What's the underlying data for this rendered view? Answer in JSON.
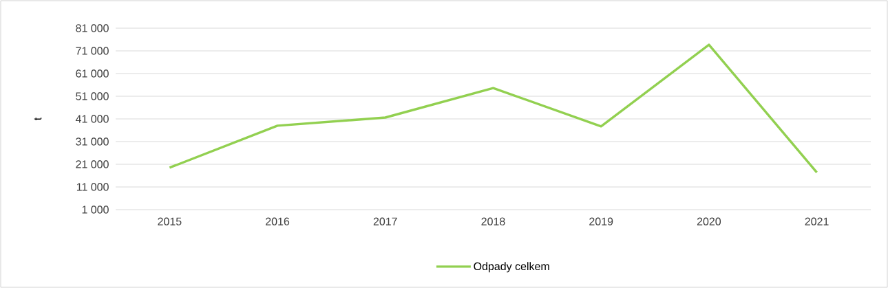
{
  "chart_data": {
    "type": "line",
    "ylabel": "t",
    "categories": [
      "2015",
      "2016",
      "2017",
      "2018",
      "2019",
      "2020",
      "2021"
    ],
    "series": [
      {
        "name": "Odpady celkem",
        "color": "#92d050",
        "values": [
          19500,
          38000,
          41600,
          54600,
          37700,
          73700,
          17400
        ]
      }
    ],
    "ylim": [
      1000,
      81000
    ],
    "yticks": [
      {
        "value": 1000,
        "label": "1 000"
      },
      {
        "value": 11000,
        "label": "11 000"
      },
      {
        "value": 21000,
        "label": "21 000"
      },
      {
        "value": 31000,
        "label": "31 000"
      },
      {
        "value": 41000,
        "label": "41 000"
      },
      {
        "value": 51000,
        "label": "51 000"
      },
      {
        "value": 61000,
        "label": "61 000"
      },
      {
        "value": 71000,
        "label": "71 000"
      },
      {
        "value": 81000,
        "label": "81 000"
      }
    ],
    "grid": "y",
    "legend": "bottom",
    "marker": "none",
    "line_style": "solid"
  }
}
